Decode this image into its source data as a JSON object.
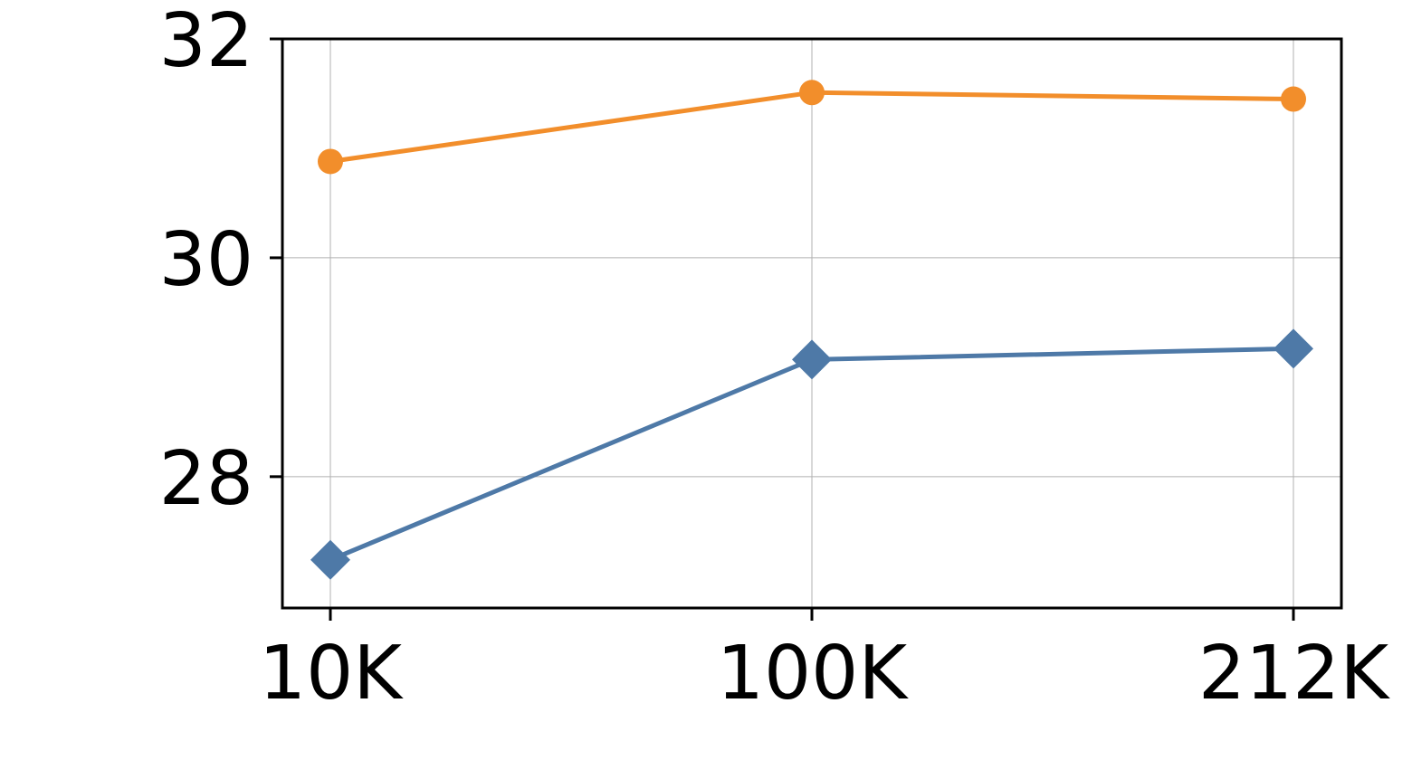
{
  "chart_data": {
    "type": "line",
    "categories": [
      "10K",
      "100K",
      "212K"
    ],
    "series": [
      {
        "color": "#f28e2b",
        "marker": "circle",
        "values": [
          30.88,
          31.51,
          31.45
        ]
      },
      {
        "color": "#4e79a7",
        "marker": "diamond",
        "values": [
          27.24,
          29.07,
          29.17
        ]
      }
    ],
    "ylim": [
      26.8,
      32
    ],
    "yticks": [
      28,
      30,
      32
    ],
    "grid": true
  }
}
